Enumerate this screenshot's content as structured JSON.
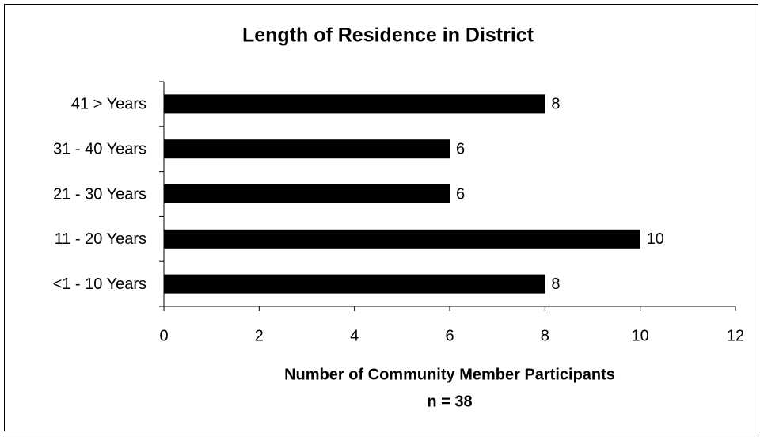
{
  "chart_data": {
    "type": "bar",
    "orientation": "horizontal",
    "title": "Length of Residence in District",
    "xlabel": "Number of Community Member Participants",
    "note": "n = 38",
    "categories": [
      "41 > Years",
      "31 - 40 Years",
      "21 - 30 Years",
      "11 - 20 Years",
      "<1 - 10 Years"
    ],
    "values": [
      8,
      6,
      6,
      10,
      8
    ],
    "color": "#000000",
    "xlim": [
      0,
      12
    ],
    "xticks": [
      0,
      2,
      4,
      6,
      8,
      10,
      12
    ],
    "grid": false
  }
}
